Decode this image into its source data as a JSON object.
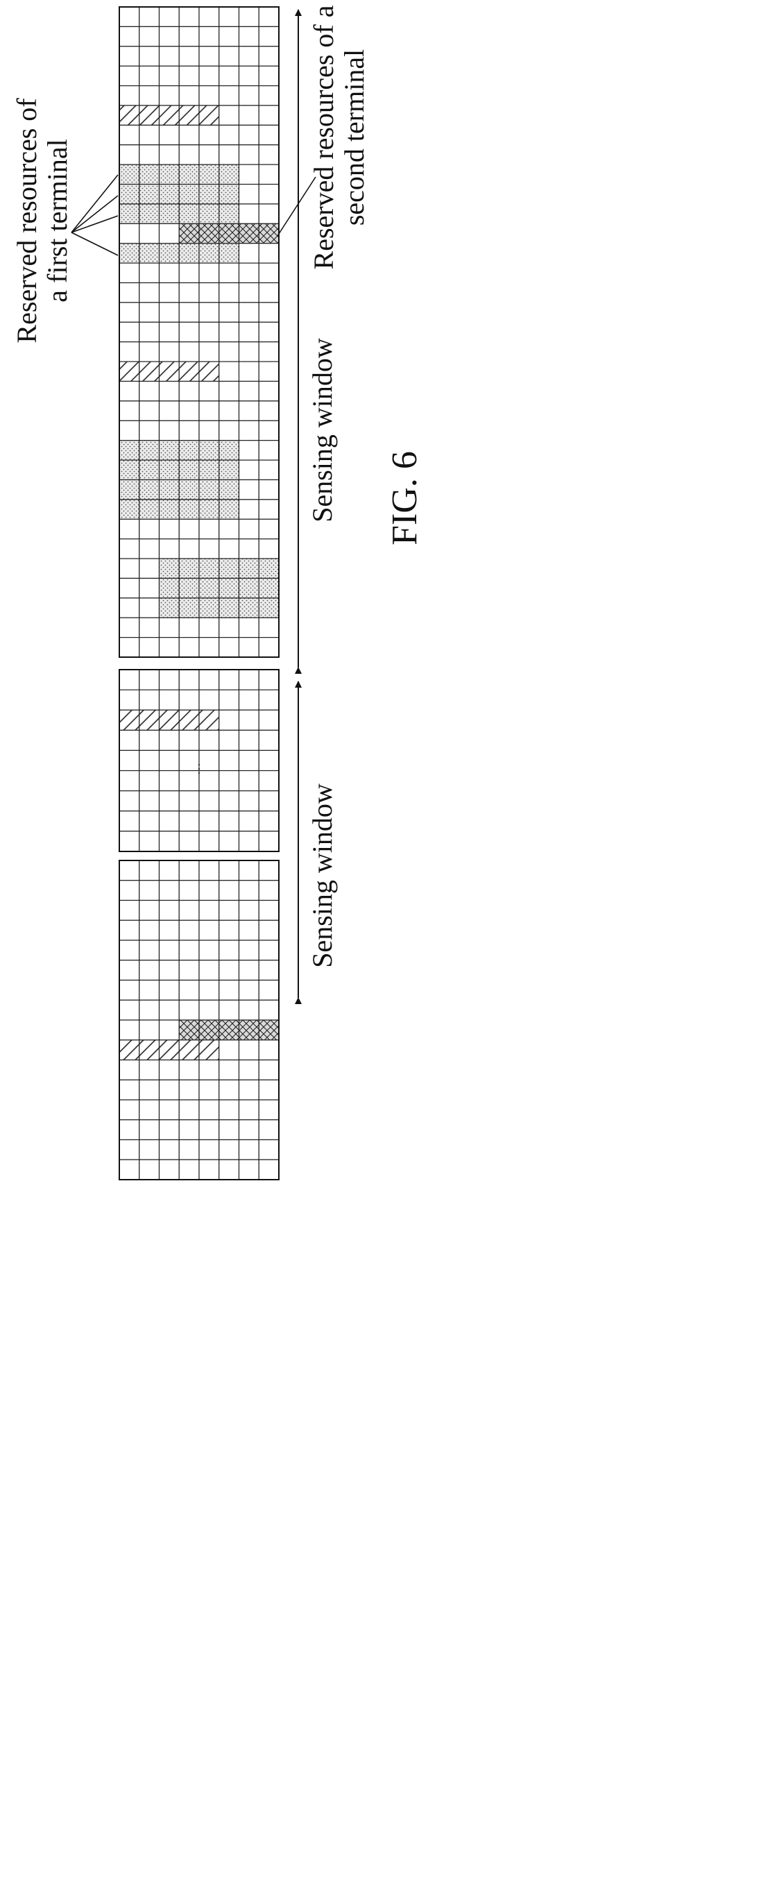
{
  "labels": {
    "first_terminal_line1": "Reserved resources of",
    "first_terminal_line2": "a first terminal",
    "second_terminal_line1": "Reserved resources of a",
    "second_terminal_line2": "second terminal",
    "sensing_window_main": "Sensing window",
    "sensing_window_lower": "Sensing window",
    "ellipsis": "…",
    "figure": "FIG. 6"
  },
  "grid": {
    "columns": 8,
    "blocks": [
      {
        "id": "main-block",
        "rows": 33,
        "hatched": [
          {
            "row": 5,
            "cols": [
              0,
              4
            ]
          },
          {
            "row": 18,
            "cols": [
              0,
              4
            ]
          }
        ],
        "dotted": [
          {
            "row": 8,
            "cols": [
              0,
              5
            ]
          },
          {
            "row": 9,
            "cols": [
              0,
              5
            ]
          },
          {
            "row": 10,
            "cols": [
              0,
              5
            ]
          },
          {
            "row": 12,
            "cols": [
              0,
              5
            ]
          },
          {
            "row": 22,
            "cols": [
              0,
              5
            ]
          },
          {
            "row": 23,
            "cols": [
              0,
              5
            ]
          },
          {
            "row": 24,
            "cols": [
              0,
              5
            ]
          },
          {
            "row": 25,
            "cols": [
              0,
              5
            ]
          },
          {
            "row": 28,
            "cols": [
              2,
              7
            ]
          },
          {
            "row": 29,
            "cols": [
              2,
              7
            ]
          },
          {
            "row": 30,
            "cols": [
              2,
              7
            ]
          }
        ],
        "crosshatched": [
          {
            "row": 11,
            "cols": [
              3,
              7
            ]
          }
        ]
      },
      {
        "id": "middle-block",
        "rows": 9,
        "hatched": [
          {
            "row": 2,
            "cols": [
              0,
              4
            ]
          }
        ],
        "dotted": [],
        "crosshatched": []
      },
      {
        "id": "lower-block",
        "rows": 16,
        "hatched": [
          {
            "row": 9,
            "cols": [
              0,
              4
            ]
          }
        ],
        "dotted": [],
        "crosshatched": [
          {
            "row": 8,
            "cols": [
              3,
              7
            ]
          }
        ]
      }
    ]
  }
}
